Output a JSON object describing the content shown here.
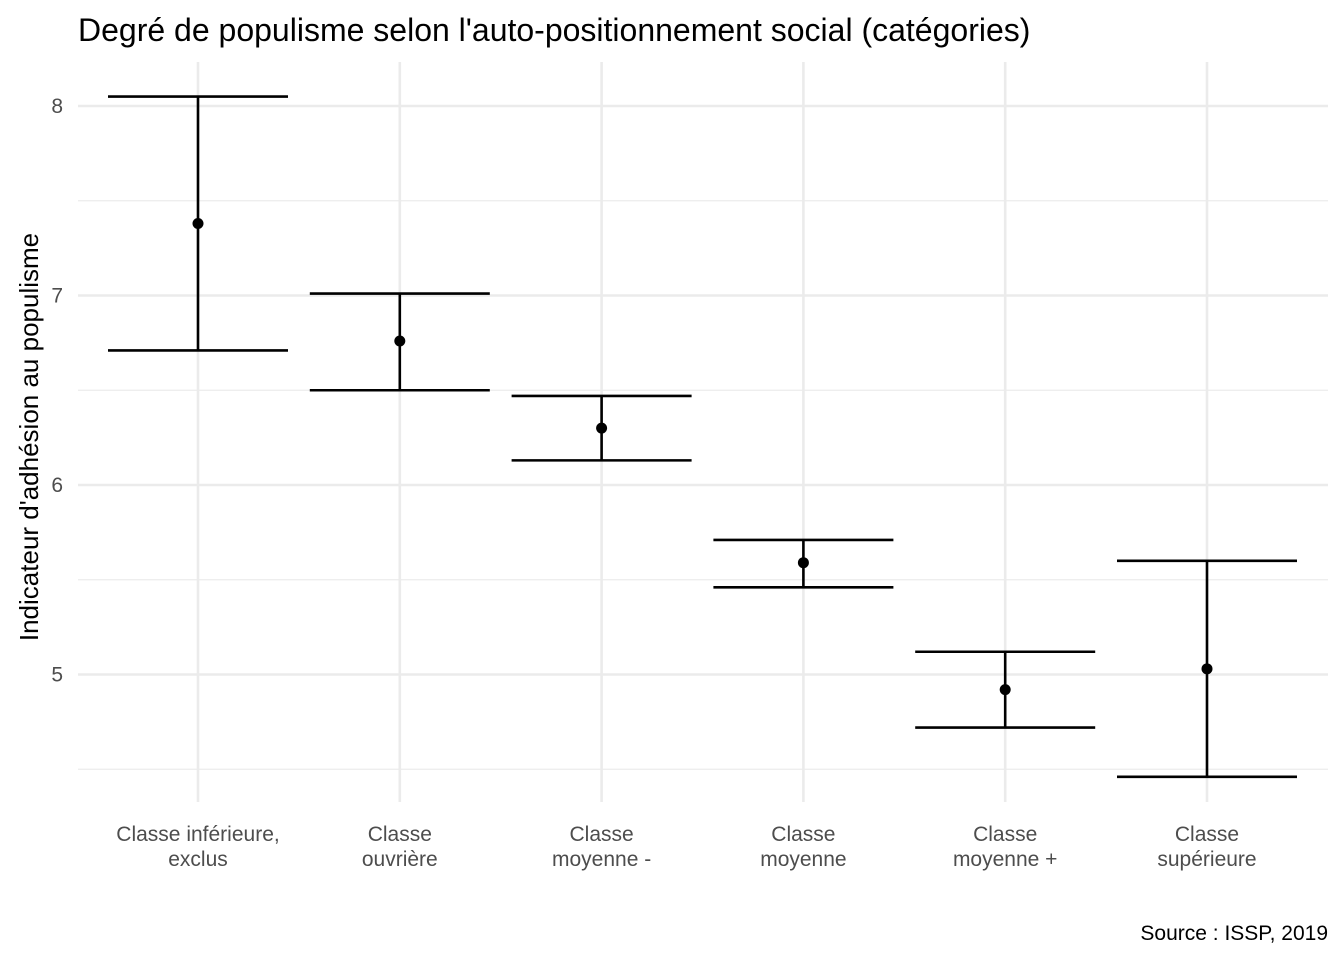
{
  "chart_data": {
    "type": "errorbar",
    "title": "Degré de populisme selon l'auto-positionnement social (catégories)",
    "ylabel": "Indicateur d'adhésion au populisme",
    "xlabel": "",
    "caption": "Source : ISSP, 2019",
    "ylim": [
      4.3,
      8.2
    ],
    "yticks": [
      5,
      6,
      7,
      8
    ],
    "grid": true,
    "categories": [
      [
        "Classe inférieure,",
        "exclus"
      ],
      [
        "Classe",
        "ouvrière"
      ],
      [
        "Classe",
        "moyenne -"
      ],
      [
        "Classe",
        "moyenne"
      ],
      [
        "Classe",
        "moyenne +"
      ],
      [
        "Classe",
        "supérieure"
      ]
    ],
    "values": [
      7.38,
      6.76,
      6.3,
      5.59,
      4.92,
      5.03
    ],
    "lower": [
      6.71,
      6.5,
      6.13,
      5.46,
      4.72,
      4.46
    ],
    "upper": [
      8.05,
      7.01,
      6.47,
      5.71,
      5.12,
      5.6
    ]
  }
}
